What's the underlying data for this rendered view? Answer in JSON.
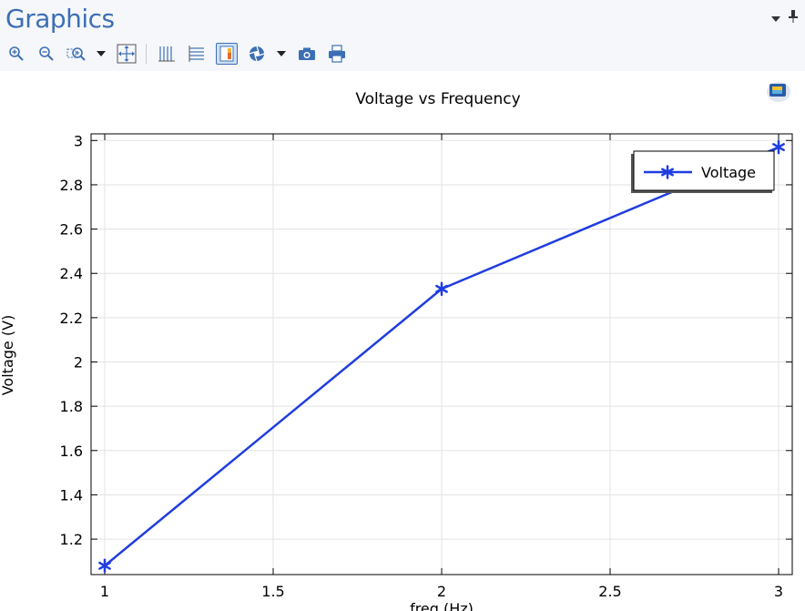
{
  "window": {
    "title": "Graphics"
  },
  "toolbar": {
    "items": [
      {
        "id": "zoom-in",
        "icon": "zoom-in-icon"
      },
      {
        "id": "zoom-out",
        "icon": "zoom-out-icon"
      },
      {
        "id": "zoom-box",
        "icon": "zoom-box-icon"
      },
      {
        "id": "zoom-menu",
        "icon": "dropdown-arrow-icon"
      },
      {
        "id": "zoom-extents",
        "icon": "zoom-extents-icon"
      },
      {
        "id": "grid-columns",
        "icon": "grid-columns-icon"
      },
      {
        "id": "grid-rows",
        "icon": "grid-rows-icon"
      },
      {
        "id": "show-legends",
        "icon": "legend-toggle-icon",
        "active": true
      },
      {
        "id": "scene-light",
        "icon": "aperture-icon"
      },
      {
        "id": "scene-menu",
        "icon": "dropdown-arrow-icon"
      },
      {
        "id": "image-snapshot",
        "icon": "camera-icon"
      },
      {
        "id": "print",
        "icon": "printer-icon"
      }
    ]
  },
  "colors": {
    "accent": "#3d6fb4",
    "series": "#1f3de0",
    "grid": "#e3e3e3",
    "axis": "#000000"
  },
  "chart_data": {
    "type": "line",
    "title": "Voltage vs Frequency",
    "xlabel": "freq (Hz)",
    "ylabel": "Voltage (V)",
    "xlim": [
      1,
      3
    ],
    "ylim": [
      1.04,
      3.03
    ],
    "xticks": [
      1,
      1.5,
      2,
      2.5,
      3
    ],
    "xtick_labels": [
      "1",
      "1.5",
      "2",
      "2.5",
      "3"
    ],
    "yticks": [
      1.2,
      1.4,
      1.6,
      1.8,
      2,
      2.2,
      2.4,
      2.6,
      2.8,
      3
    ],
    "ytick_labels": [
      "1.2",
      "1.4",
      "1.6",
      "1.8",
      "2",
      "2.2",
      "2.4",
      "2.6",
      "2.8",
      "3"
    ],
    "grid": true,
    "legend_position": "top-right",
    "series": [
      {
        "name": "Voltage",
        "marker": "asterisk",
        "x": [
          1,
          2,
          3
        ],
        "y": [
          1.08,
          2.33,
          2.97
        ]
      }
    ]
  }
}
